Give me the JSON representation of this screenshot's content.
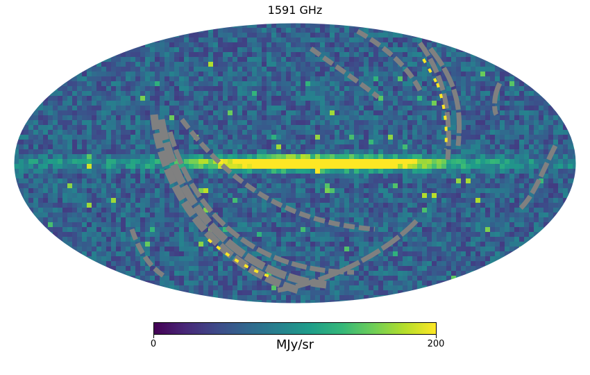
{
  "title": "1591 GHz",
  "colorbar": {
    "min_label": "0",
    "max_label": "200",
    "min": 0,
    "max": 200,
    "unit": "MJy/sr",
    "colormap": "viridis",
    "colors": [
      "#440154",
      "#482878",
      "#3e4a89",
      "#31688e",
      "#26828e",
      "#1f9e89",
      "#35b779",
      "#6ece58",
      "#b5de2b",
      "#fde725"
    ]
  },
  "map": {
    "projection": "mollweide",
    "background_color": "#ffffff",
    "masked_color": "#808080",
    "features": {
      "galactic_plane_level": 200,
      "background_level_typical": 60
    }
  }
}
